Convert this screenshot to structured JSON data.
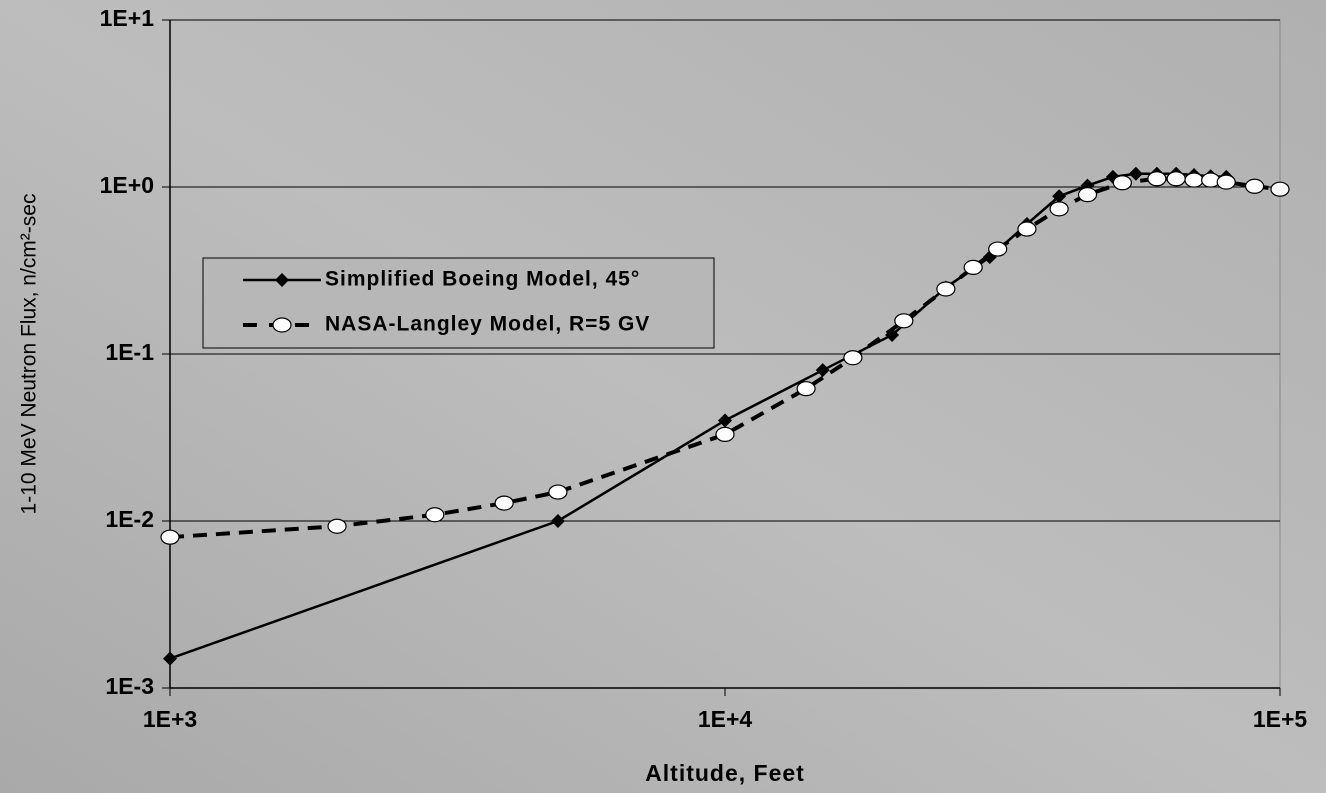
{
  "chart_data": {
    "type": "line",
    "x_label": "Altitude, Feet",
    "y_label": "1-10 MeV Neutron Flux, n/cm²-sec",
    "xscale": "log",
    "yscale": "log",
    "xlim": [
      1000,
      100000
    ],
    "ylim": [
      0.001,
      10
    ],
    "xticks": [
      {
        "value": 1000,
        "label": "1E+3"
      },
      {
        "value": 10000,
        "label": "1E+4"
      },
      {
        "value": 100000,
        "label": "1E+5"
      }
    ],
    "yticks": [
      {
        "value": 0.001,
        "label": "1E-3"
      },
      {
        "value": 0.01,
        "label": "1E-2"
      },
      {
        "value": 0.1,
        "label": "1E-1"
      },
      {
        "value": 1,
        "label": "1E+0"
      },
      {
        "value": 10,
        "label": "1E+1"
      }
    ],
    "grid": true,
    "legend": "left",
    "series": [
      {
        "name": "Simplified Boeing Model,  45°",
        "color": "#000000",
        "dash": false,
        "marker": "diamond",
        "x": [
          1000,
          5000,
          10000,
          15000,
          20000,
          25000,
          30000,
          35000,
          40000,
          45000,
          50000,
          55000,
          60000,
          65000,
          70000,
          75000,
          80000
        ],
        "values": [
          0.0015,
          0.01,
          0.04,
          0.08,
          0.13,
          0.25,
          0.38,
          0.6,
          0.88,
          1.02,
          1.15,
          1.2,
          1.2,
          1.2,
          1.18,
          1.16,
          1.15
        ]
      },
      {
        "name": "NASA-Langley Model, R=5 GV",
        "color": "#000000",
        "dash": true,
        "marker": "circle",
        "x": [
          1000,
          2000,
          3000,
          4000,
          5000,
          10000,
          14000,
          17000,
          21000,
          25000,
          28000,
          31000,
          35000,
          40000,
          45000,
          52000,
          60000,
          65000,
          70000,
          75000,
          80000,
          90000,
          100000
        ],
        "values": [
          0.008,
          0.0093,
          0.0109,
          0.0128,
          0.0149,
          0.033,
          0.062,
          0.095,
          0.158,
          0.245,
          0.33,
          0.425,
          0.56,
          0.74,
          0.9,
          1.06,
          1.12,
          1.12,
          1.1,
          1.1,
          1.07,
          1.01,
          0.97
        ]
      }
    ]
  }
}
